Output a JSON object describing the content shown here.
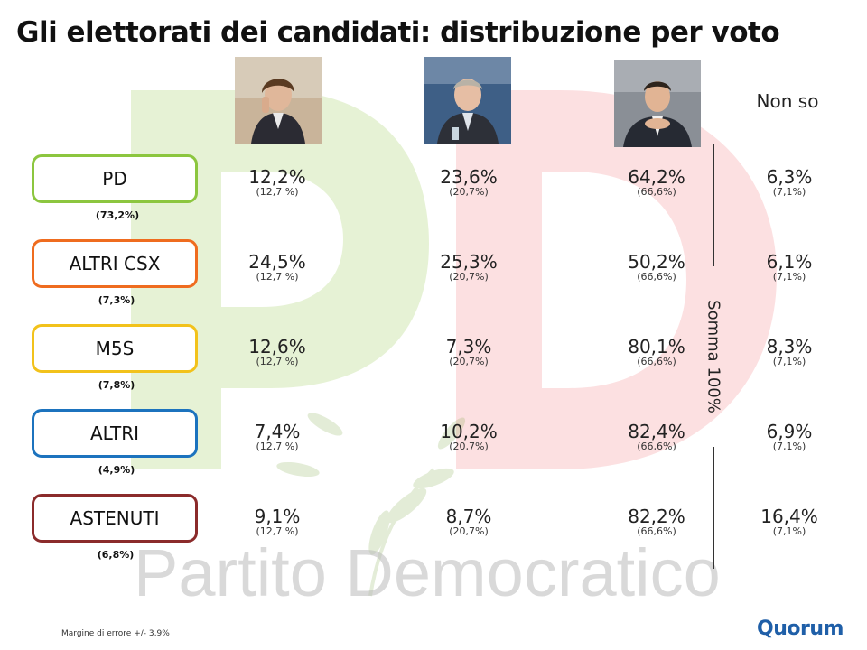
{
  "title": "Gli elettorati dei candidati: distribuzione per voto",
  "logo_text": "Partito Democratico",
  "nonso_label": "Non so",
  "somma_label": "Somma 100%",
  "footer_note": "Margine di errore +/- 3,9%",
  "brand": "Quorum",
  "colors": {
    "pd_green": "#8cc63f",
    "pd_red": "#e8262c",
    "brand_blue": "#1f5fa8"
  },
  "photos": [
    {
      "name": "candidate-1-photo"
    },
    {
      "name": "candidate-2-photo"
    },
    {
      "name": "candidate-3-photo"
    }
  ],
  "chart_data": {
    "type": "table",
    "columns": [
      "",
      "",
      "",
      "Non so"
    ],
    "rows": [
      {
        "label": "PD",
        "share": "(73,2%)",
        "color": "#8cc63f",
        "values": [
          "12,2%",
          "23,6%",
          "64,2%",
          "6,3%"
        ],
        "refs": [
          "(12,7 %)",
          "(20,7%)",
          "(66,6%)",
          "(7,1%)"
        ]
      },
      {
        "label": "ALTRI CSX",
        "share": "(7,3%)",
        "color": "#ef6c1f",
        "values": [
          "24,5%",
          "25,3%",
          "50,2%",
          "6,1%"
        ],
        "refs": [
          "(12,7 %)",
          "(20,7%)",
          "(66,6%)",
          "(7,1%)"
        ]
      },
      {
        "label": "M5S",
        "share": "(7,8%)",
        "color": "#f2c21b",
        "values": [
          "12,6%",
          "7,3%",
          "80,1%",
          "8,3%"
        ],
        "refs": [
          "(12,7 %)",
          "(20,7%)",
          "(66,6%)",
          "(7,1%)"
        ]
      },
      {
        "label": "ALTRI",
        "share": "(4,9%)",
        "color": "#1c73be",
        "values": [
          "7,4%",
          "10,2%",
          "82,4%",
          "6,9%"
        ],
        "refs": [
          "(12,7 %)",
          "(20,7%)",
          "(66,6%)",
          "(7,1%)"
        ]
      },
      {
        "label": "ASTENUTI",
        "share": "(6,8%)",
        "color": "#8b2b2b",
        "values": [
          "9,1%",
          "8,7%",
          "82,2%",
          "16,4%"
        ],
        "refs": [
          "(12,7 %)",
          "(20,7%)",
          "(66,6%)",
          "(7,1%)"
        ]
      }
    ]
  }
}
